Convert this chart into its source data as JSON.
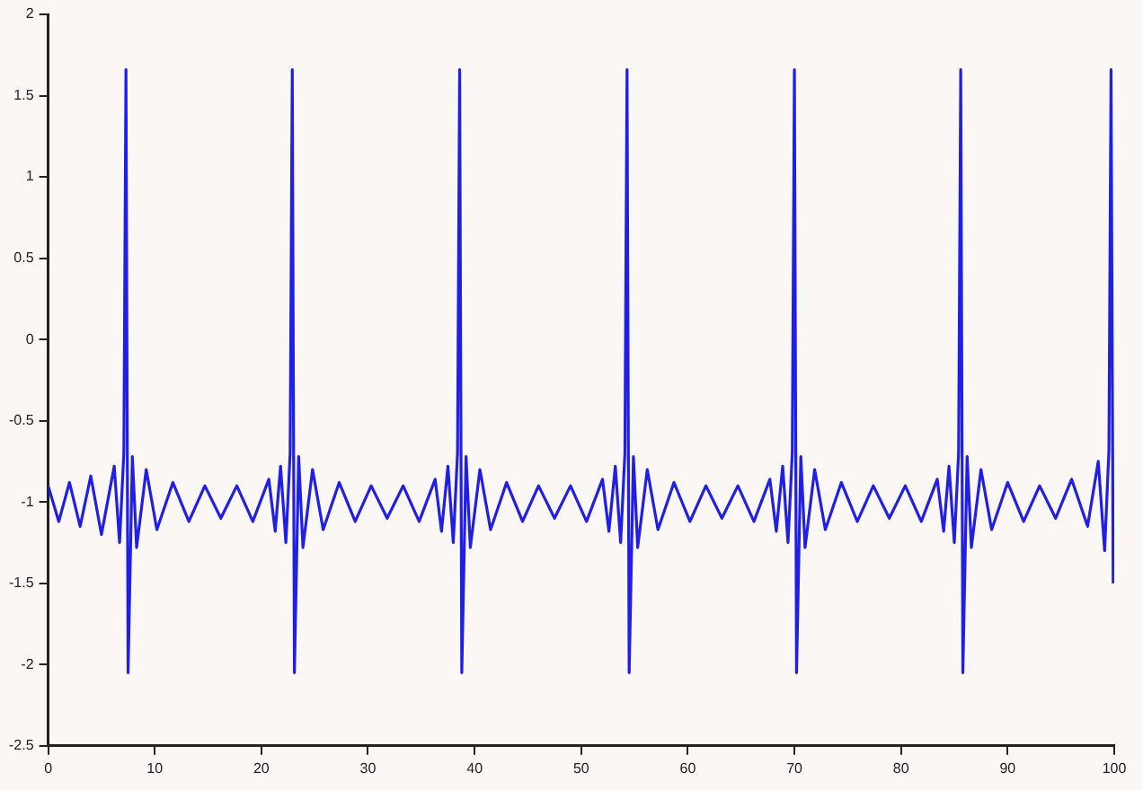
{
  "chart_data": {
    "type": "line",
    "xlim": [
      0,
      100
    ],
    "xticks": [
      0,
      10,
      20,
      30,
      40,
      50,
      60,
      70,
      80,
      90,
      100
    ],
    "ylim": [
      -2.5,
      2
    ],
    "yticks": [
      -2.5,
      -2,
      -1.5,
      -1,
      -0.5,
      0,
      0.5,
      1,
      1.5,
      2
    ],
    "grid": false,
    "legend": false,
    "marker": "none",
    "line_style": "solid",
    "series": [
      {
        "color": "#1f1fe6",
        "x": [
          0,
          1,
          2,
          3,
          4,
          5,
          6.2,
          6.7,
          7.1,
          7.3,
          7.5,
          7.9,
          8.3,
          9.2,
          10.2,
          11.7,
          13.2,
          14.7,
          16.2,
          17.7,
          19.2,
          20.7,
          21.3,
          21.8,
          22.3,
          22.7,
          22.9,
          23.1,
          23.5,
          23.9,
          24.8,
          25.8,
          27.3,
          28.8,
          30.3,
          31.8,
          33.3,
          34.8,
          36.3,
          36.9,
          37.5,
          38.0,
          38.4,
          38.6,
          38.8,
          39.2,
          39.6,
          40.5,
          41.5,
          43,
          44.5,
          46,
          47.5,
          49,
          50.5,
          52,
          52.6,
          53.2,
          53.7,
          54.1,
          54.3,
          54.5,
          54.9,
          55.3,
          56.2,
          57.2,
          58.7,
          60.2,
          61.7,
          63.2,
          64.7,
          66.2,
          67.7,
          68.3,
          68.9,
          69.4,
          69.8,
          70.0,
          70.2,
          70.6,
          71.0,
          71.9,
          72.9,
          74.4,
          75.9,
          77.4,
          78.9,
          80.4,
          81.9,
          83.4,
          84.0,
          84.5,
          85.0,
          85.4,
          85.6,
          85.8,
          86.2,
          86.6,
          87.5,
          88.5,
          90,
          91.5,
          93,
          94.5,
          96,
          97.5,
          98.5,
          99.1,
          99.5,
          99.7,
          99.9
        ],
        "values": [
          -0.9,
          -1.12,
          -0.88,
          -1.15,
          -0.84,
          -1.2,
          -0.78,
          -1.25,
          -0.7,
          1.66,
          -2.05,
          -0.72,
          -1.28,
          -0.8,
          -1.17,
          -0.88,
          -1.12,
          -0.9,
          -1.1,
          -0.9,
          -1.12,
          -0.86,
          -1.18,
          -0.78,
          -1.25,
          -0.7,
          1.66,
          -2.05,
          -0.72,
          -1.28,
          -0.8,
          -1.17,
          -0.88,
          -1.12,
          -0.9,
          -1.1,
          -0.9,
          -1.12,
          -0.86,
          -1.18,
          -0.78,
          -1.25,
          -0.7,
          1.66,
          -2.05,
          -0.72,
          -1.28,
          -0.8,
          -1.17,
          -0.88,
          -1.12,
          -0.9,
          -1.1,
          -0.9,
          -1.12,
          -0.86,
          -1.18,
          -0.78,
          -1.25,
          -0.7,
          1.66,
          -2.05,
          -0.72,
          -1.28,
          -0.8,
          -1.17,
          -0.88,
          -1.12,
          -0.9,
          -1.1,
          -0.9,
          -1.12,
          -0.86,
          -1.18,
          -0.78,
          -1.25,
          -0.7,
          1.66,
          -2.05,
          -0.72,
          -1.28,
          -0.8,
          -1.17,
          -0.88,
          -1.12,
          -0.9,
          -1.1,
          -0.9,
          -1.12,
          -0.86,
          -1.18,
          -0.78,
          -1.25,
          -0.7,
          1.66,
          -2.05,
          -0.72,
          -1.28,
          -0.8,
          -1.17,
          -0.88,
          -1.12,
          -0.9,
          -1.1,
          -0.86,
          -1.15,
          -0.75,
          -1.3,
          -0.68,
          1.66,
          -1.5
        ]
      }
    ]
  }
}
